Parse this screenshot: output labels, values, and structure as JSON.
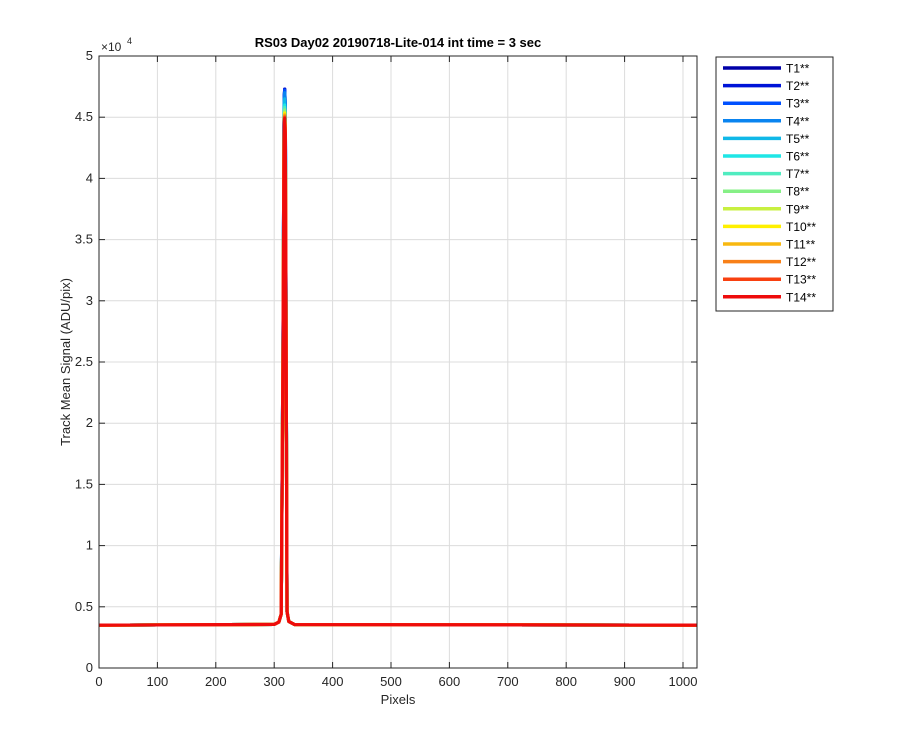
{
  "chart_data": {
    "type": "line",
    "title": "RS03 Day02 20190718-Lite-014 int time = 3 sec",
    "xlabel": "Pixels",
    "ylabel": "Track Mean Signal (ADU/pix)",
    "y_exponent_label": "×10",
    "y_exponent": "4",
    "xlim": [
      0,
      1024
    ],
    "ylim": [
      0,
      50000
    ],
    "x_ticks": [
      0,
      100,
      200,
      300,
      400,
      500,
      600,
      700,
      800,
      900,
      1000
    ],
    "x_tick_labels": [
      "0",
      "100",
      "200",
      "300",
      "400",
      "500",
      "600",
      "700",
      "800",
      "900",
      "1000"
    ],
    "y_ticks": [
      0,
      5000,
      10000,
      15000,
      20000,
      25000,
      30000,
      35000,
      40000,
      45000,
      50000
    ],
    "y_tick_labels": [
      "0",
      "0.5",
      "1",
      "1.5",
      "2",
      "2.5",
      "3",
      "3.5",
      "4",
      "4.5",
      "5"
    ],
    "grid": true,
    "legend_position": "outside-top-right",
    "baseline": 3500,
    "peak_x": 318,
    "series": [
      {
        "name": "T1**",
        "color": "#0000a8",
        "peak": 47300
      },
      {
        "name": "T2**",
        "color": "#0014d8",
        "peak": 47300
      },
      {
        "name": "T3**",
        "color": "#0050ff",
        "peak": 47200
      },
      {
        "name": "T4**",
        "color": "#0a84f0",
        "peak": 47000
      },
      {
        "name": "T5**",
        "color": "#10b8e8",
        "peak": 46500
      },
      {
        "name": "T6**",
        "color": "#1ee6e6",
        "peak": 46000
      },
      {
        "name": "T7**",
        "color": "#50ecc0",
        "peak": 45800
      },
      {
        "name": "T8**",
        "color": "#86f086",
        "peak": 45600
      },
      {
        "name": "T9**",
        "color": "#c8f040",
        "peak": 45400
      },
      {
        "name": "T10**",
        "color": "#fff000",
        "peak": 45300
      },
      {
        "name": "T11**",
        "color": "#f8b810",
        "peak": 45200
      },
      {
        "name": "T12**",
        "color": "#f88018",
        "peak": 45100
      },
      {
        "name": "T13**",
        "color": "#f84010",
        "peak": 45000
      },
      {
        "name": "T14**",
        "color": "#ee0c0c",
        "peak": 44900
      }
    ]
  }
}
